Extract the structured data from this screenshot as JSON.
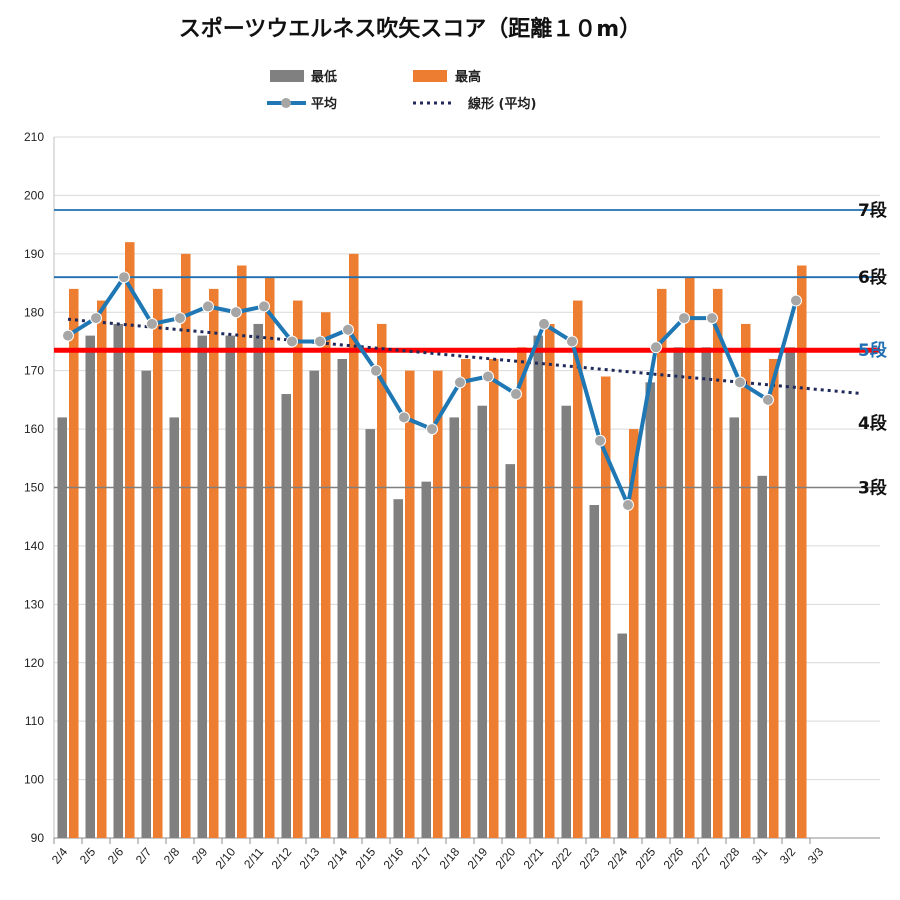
{
  "chart_data": {
    "type": "bar",
    "title": "スポーツウエルネス吹矢スコア（距離１０m）",
    "categories": [
      "2/4",
      "2/5",
      "2/6",
      "2/7",
      "2/8",
      "2/9",
      "2/10",
      "2/11",
      "2/12",
      "2/13",
      "2/14",
      "2/15",
      "2/16",
      "2/17",
      "2/18",
      "2/19",
      "2/20",
      "2/21",
      "2/22",
      "2/23",
      "2/24",
      "2/25",
      "2/26",
      "2/27",
      "2/28",
      "3/1",
      "3/2",
      "3/3"
    ],
    "ylim": [
      90,
      210
    ],
    "yticks": [
      90,
      100,
      110,
      120,
      130,
      140,
      150,
      160,
      170,
      180,
      190,
      200,
      210
    ],
    "grid": false,
    "legend_position": "top",
    "series": [
      {
        "name": "最低",
        "kind": "bar",
        "color": "#808080",
        "values": [
          162,
          176,
          178,
          170,
          162,
          176,
          176,
          178,
          166,
          170,
          172,
          160,
          148,
          151,
          162,
          164,
          154,
          176,
          164,
          147,
          125,
          168,
          174,
          174,
          162,
          152,
          174,
          null
        ]
      },
      {
        "name": "最高",
        "kind": "bar",
        "color": "#ED7D31",
        "values": [
          184,
          182,
          192,
          184,
          190,
          184,
          188,
          186,
          182,
          180,
          190,
          178,
          170,
          170,
          172,
          172,
          174,
          178,
          182,
          169,
          160,
          184,
          186,
          184,
          178,
          172,
          188,
          null
        ]
      },
      {
        "name": "平均",
        "kind": "line",
        "color": "#1F77B4",
        "marker_color": "#A6A6A6",
        "values": [
          176,
          179,
          186,
          178,
          179,
          181,
          180,
          181,
          175,
          175,
          177,
          170,
          162,
          160,
          168,
          169,
          166,
          178,
          175,
          158,
          147,
          174,
          179,
          179,
          168,
          165,
          182,
          null
        ]
      },
      {
        "name": "線形 (平均)",
        "kind": "trendline",
        "color": "#1F2A5A",
        "from": [
          0,
          178.8
        ],
        "to": [
          28.3,
          166.1
        ]
      }
    ],
    "reference_lines": [
      {
        "label": "7段",
        "value": 197.5,
        "color": "#1F6FB2",
        "label_color": "#111111"
      },
      {
        "label": "6段",
        "value": 186,
        "color": "#1F6FB2",
        "label_color": "#111111"
      },
      {
        "label": "5段",
        "value": 173.5,
        "color": "#FF0000",
        "label_color": "#1F6FB2"
      },
      {
        "label": "4段",
        "value": null,
        "label_value": 161,
        "color": null,
        "label_color": "#111111"
      },
      {
        "label": "3段",
        "value": 150,
        "color": "#7F7F7F",
        "label_color": "#111111"
      }
    ]
  }
}
